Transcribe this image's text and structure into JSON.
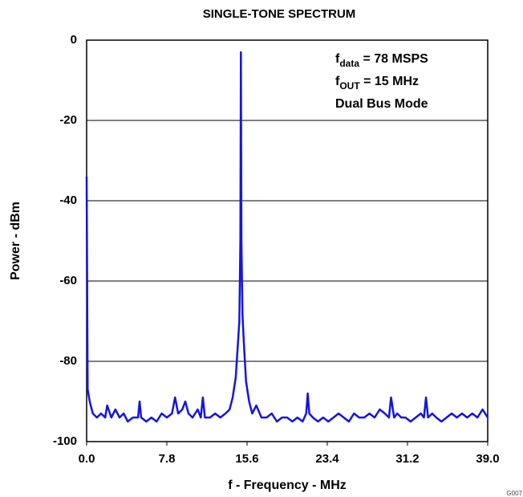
{
  "chart_data": {
    "type": "line",
    "title": "SINGLE-TONE SPECTRUM",
    "x_label": "f - Frequency - MHz",
    "y_label": "Power - dBm",
    "figure_id": "G007",
    "annotations": [
      {
        "main": "f",
        "sub": "data",
        "rest": " = 78 MSPS"
      },
      {
        "main": "f",
        "sub": "OUT",
        "rest": " = 15 MHz"
      },
      {
        "main": "Dual Bus Mode"
      }
    ],
    "color": "#1414e6",
    "grid": true,
    "xlim": [
      0,
      39
    ],
    "ylim": [
      -100,
      0
    ],
    "xticks": [
      {
        "value": 0,
        "label": "0.0"
      },
      7.8,
      15.6,
      23.4,
      31.2,
      {
        "value": 39,
        "label": "39.0"
      }
    ],
    "yticks": [
      0,
      -20,
      -40,
      -60,
      -80,
      -100
    ],
    "x": [
      0,
      0.1,
      0.3,
      0.6,
      1.0,
      1.4,
      1.8,
      2.0,
      2.4,
      2.8,
      3.2,
      3.6,
      4.0,
      4.5,
      5.0,
      5.15,
      5.3,
      5.8,
      6.3,
      6.8,
      7.3,
      7.8,
      8.3,
      8.6,
      8.9,
      9.3,
      9.6,
      9.9,
      10.3,
      10.8,
      11.1,
      11.3,
      11.5,
      12.0,
      12.5,
      13.0,
      13.5,
      13.9,
      14.2,
      14.5,
      14.7,
      14.85,
      14.95,
      15.0,
      15.05,
      15.15,
      15.3,
      15.5,
      15.8,
      16.1,
      16.5,
      17.0,
      17.5,
      18.0,
      18.5,
      19.0,
      19.5,
      20.0,
      20.5,
      21.0,
      21.35,
      21.5,
      21.65,
      22.0,
      22.5,
      23.0,
      23.5,
      24.0,
      24.5,
      25.0,
      25.5,
      26.0,
      26.5,
      27.0,
      27.5,
      28.0,
      28.5,
      29.0,
      29.4,
      29.6,
      29.9,
      30.2,
      30.6,
      31.0,
      31.5,
      32.0,
      32.5,
      32.8,
      33.0,
      33.2,
      33.6,
      34.0,
      34.5,
      35.0,
      35.5,
      36.0,
      36.5,
      37.0,
      37.5,
      38.0,
      38.5,
      39.0
    ],
    "values": [
      -34,
      -87,
      -90,
      -93,
      -94,
      -93,
      -94,
      -91,
      -94,
      -92,
      -94,
      -93,
      -95,
      -94,
      -94,
      -90,
      -94,
      -95,
      -94,
      -95,
      -93,
      -94,
      -93,
      -89,
      -93,
      -92,
      -90,
      -93,
      -94,
      -92,
      -94,
      -89,
      -94,
      -94,
      -93,
      -94,
      -93,
      -92,
      -89,
      -84,
      -76,
      -70,
      -50,
      -3,
      -50,
      -68,
      -76,
      -85,
      -90,
      -93,
      -91,
      -94,
      -94,
      -93,
      -95,
      -94,
      -94,
      -95,
      -94,
      -95,
      -93,
      -88,
      -93,
      -94,
      -95,
      -94,
      -95,
      -94,
      -93,
      -94,
      -95,
      -93,
      -94,
      -94,
      -93,
      -94,
      -92,
      -93,
      -94,
      -89,
      -94,
      -93,
      -94,
      -94,
      -95,
      -94,
      -93,
      -94,
      -89,
      -94,
      -93,
      -94,
      -95,
      -94,
      -93,
      -94,
      -93,
      -94,
      -93,
      -94,
      -92,
      -94
    ]
  }
}
